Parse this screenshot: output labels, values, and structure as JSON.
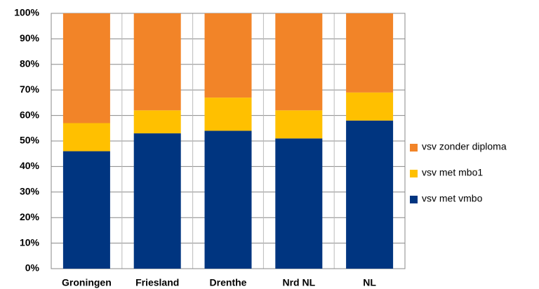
{
  "chart_data": {
    "type": "stacked_bar",
    "categories": [
      "Groningen",
      "Friesland",
      "Drenthe",
      "Nrd NL",
      "NL"
    ],
    "series": [
      {
        "name": "vsv met vmbo",
        "color": "#003580",
        "values": [
          46,
          53,
          54,
          51,
          58
        ]
      },
      {
        "name": "vsv met mbo1",
        "color": "#ffc000",
        "values": [
          11,
          9,
          13,
          11,
          11
        ]
      },
      {
        "name": "vsv zonder diploma",
        "color": "#f28428",
        "values": [
          43,
          38,
          33,
          38,
          31
        ]
      }
    ],
    "ylim": [
      0,
      100
    ],
    "yticks": [
      {
        "value": 0,
        "label": "0%"
      },
      {
        "value": 10,
        "label": "10%"
      },
      {
        "value": 20,
        "label": "20%"
      },
      {
        "value": 30,
        "label": "30%"
      },
      {
        "value": 40,
        "label": "40%"
      },
      {
        "value": 50,
        "label": "50%"
      },
      {
        "value": 60,
        "label": "60%"
      },
      {
        "value": 70,
        "label": "70%"
      },
      {
        "value": 80,
        "label": "80%"
      },
      {
        "value": 90,
        "label": "90%"
      },
      {
        "value": 100,
        "label": "100%"
      }
    ],
    "grid": true,
    "legend": "right"
  }
}
